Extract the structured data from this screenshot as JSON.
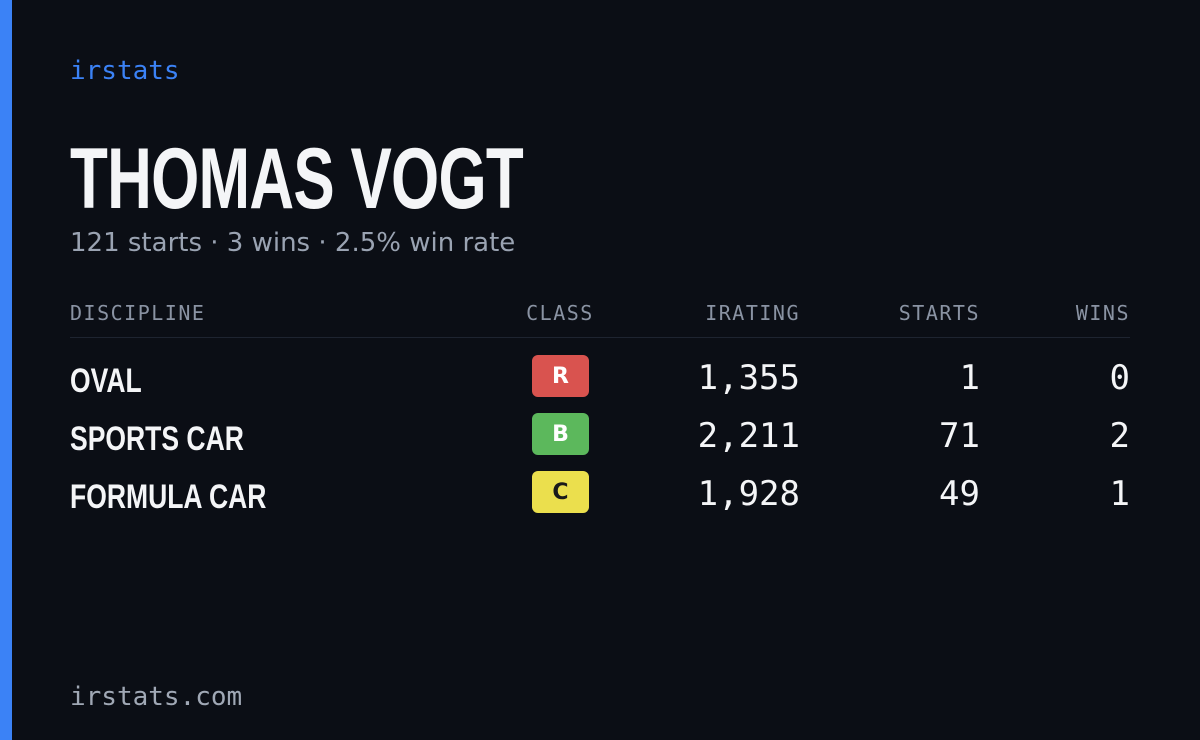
{
  "brand": "irstats",
  "profile": {
    "name": "THOMAS VOGT",
    "summary": "121 starts · 3 wins · 2.5% win rate"
  },
  "table": {
    "headers": [
      "DISCIPLINE",
      "CLASS",
      "IRATING",
      "STARTS",
      "WINS"
    ],
    "rows": [
      {
        "discipline": "OVAL",
        "class": "R",
        "class_color": "#d9534f",
        "class_text_color": "#ffffff",
        "irating": "1,355",
        "starts": "1",
        "wins": "0"
      },
      {
        "discipline": "SPORTS CAR",
        "class": "B",
        "class_color": "#5cb85c",
        "class_text_color": "#ffffff",
        "irating": "2,211",
        "starts": "71",
        "wins": "2"
      },
      {
        "discipline": "FORMULA CAR",
        "class": "C",
        "class_color": "#ebdf4d",
        "class_text_color": "#1a1a1a",
        "irating": "1,928",
        "starts": "49",
        "wins": "1"
      }
    ]
  },
  "footer": "irstats.com"
}
